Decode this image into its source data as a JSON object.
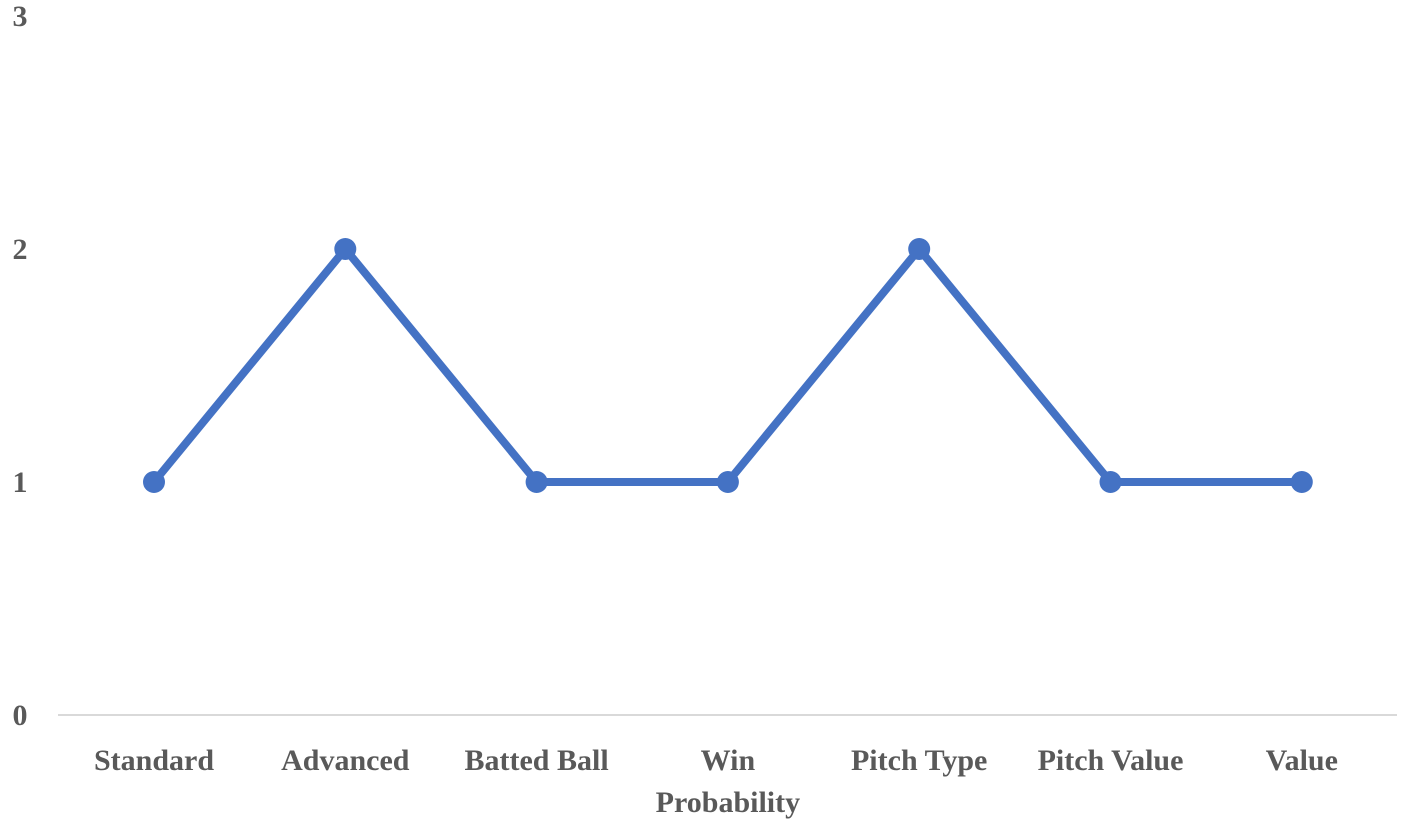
{
  "chart_data": {
    "type": "line",
    "categories": [
      "Standard",
      "Advanced",
      "Batted Ball",
      "Win Probability",
      "Pitch Type",
      "Pitch Value",
      "Value"
    ],
    "category_lines": [
      [
        "Standard"
      ],
      [
        "Advanced"
      ],
      [
        "Batted Ball"
      ],
      [
        "Win",
        "Probability"
      ],
      [
        "Pitch Type"
      ],
      [
        "Pitch Value"
      ],
      [
        "Value"
      ]
    ],
    "series": [
      {
        "values": [
          1,
          2,
          1,
          1,
          2,
          1,
          1
        ]
      }
    ],
    "yticks": [
      "0",
      "1",
      "2",
      "3"
    ],
    "ylim": [
      0,
      3
    ],
    "grid": false,
    "colors": {
      "line": "#4472C4",
      "axis": "#d9d9d9",
      "text": "#595959"
    }
  }
}
